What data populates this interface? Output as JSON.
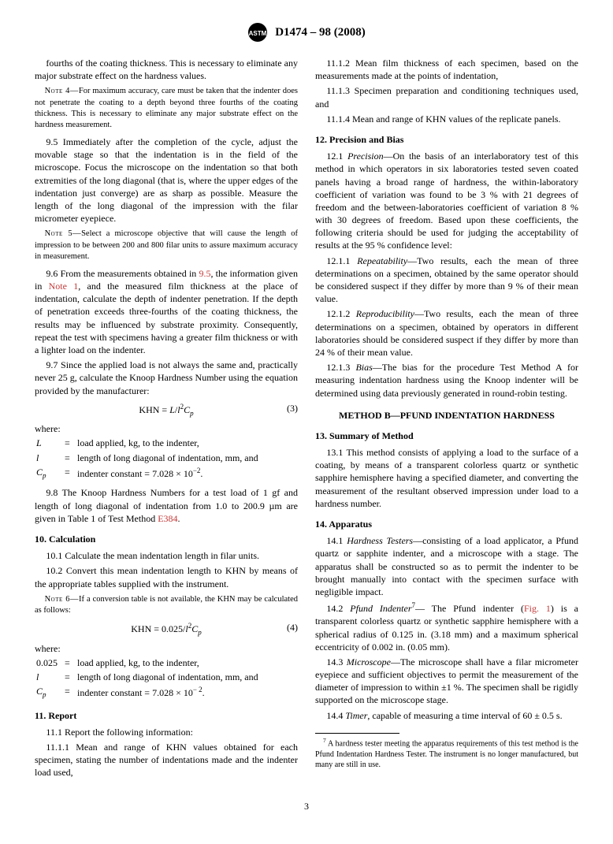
{
  "header": {
    "designation": "D1474 – 98 (2008)"
  },
  "columns_html": "<p class=\"para\" data-name=\"paragraph\" data-interactable=\"false\">fourths of the coating thickness. This is necessary to eliminate any major substrate effect on the hardness values.</p><p class=\"note\" data-name=\"note-4\" data-interactable=\"false\"><span class=\"note-label\">Note 4—</span>For maximum accuracy, care must be taken that the indenter does not penetrate the coating to a depth beyond three fourths of the coating thickness. This is necessary to eliminate any major substrate effect on the hardness measurement.</p><p class=\"para\" data-name=\"para-9-5\" data-interactable=\"false\">9.5 Immediately after the completion of the cycle, adjust the movable stage so that the indentation is in the field of the microscope. Focus the microscope on the indentation so that both extremities of the long diagonal (that is, where the upper edges of the indentation just converge) are as sharp as possible. Measure the length of the long diagonal of the impression with the filar micrometer eyepiece.</p><p class=\"note\" data-name=\"note-5\" data-interactable=\"false\"><span class=\"note-label\">Note 5—</span>Select a microscope objective that will cause the length of impression to be between 200 and 800 filar units to assure maximum accuracy in measurement.</p><p class=\"para\" data-name=\"para-9-6\" data-interactable=\"false\">9.6 From the measurements obtained in <span class=\"link-ref\" data-name=\"cross-ref\" data-interactable=\"false\">9.5</span>, the information given in <span class=\"link-ref\" data-name=\"cross-ref\" data-interactable=\"false\">Note 1</span>, and the measured film thickness at the place of indentation, calculate the depth of indenter penetration. If the depth of penetration exceeds three-fourths of the coating thickness, the results may be influenced by substrate proximity. Consequently, repeat the test with specimens having a greater film thickness or with a lighter load on the indenter.</p><p class=\"para\" data-name=\"para-9-7\" data-interactable=\"false\">9.7 Since the applied load is not always the same and, practically never 25 g, calculate the Knoop Hardness Number using the equation provided by the manufacturer:</p><div class=\"equation\" data-name=\"equation-3\" data-interactable=\"false\">KHN = <span class=\"italic\">L</span>/<span class=\"italic\">l</span><span class=\"sup\">2</span><span class=\"italic\">C<span class=\"sub\">p</span></span><span class=\"eq-num\">(3)</span></div><div class=\"where\" data-name=\"where-block\" data-interactable=\"false\">where:<table class=\"where-table\"><tr><td class=\"sym\">L</td><td class=\"eq\">=</td><td>load applied, kg, to the indenter,</td></tr><tr><td class=\"sym\">l</td><td class=\"eq\">=</td><td>length of long diagonal of indentation, mm, and</td></tr><tr><td class=\"sym\">C<span class=\"sub\">p</span></td><td class=\"eq\">=</td><td>indenter constant = 7.028 × 10<span class=\"sup\">−2</span>.</td></tr></table></div><p class=\"para\" data-name=\"para-9-8\" data-interactable=\"false\">9.8 The Knoop Hardness Numbers for a test load of 1 gf and length of long diagonal of indentation from 1.0 to 200.9 µm are given in Table 1 of Test Method <span class=\"link-ref\" data-name=\"cross-ref\" data-interactable=\"false\">E384</span>.</p><p class=\"section-head\" data-name=\"section-10-head\" data-interactable=\"false\">10.  Calculation</p><p class=\"para\" data-name=\"para-10-1\" data-interactable=\"false\">10.1 Calculate the mean indentation length in filar units.</p><p class=\"para\" data-name=\"para-10-2\" data-interactable=\"false\">10.2 Convert this mean indentation length to KHN by means of the appropriate tables supplied with the instrument.</p><p class=\"note\" data-name=\"note-6\" data-interactable=\"false\"><span class=\"note-label\">Note 6—</span>If a conversion table is not available, the KHN may be calculated as follows:</p><div class=\"equation\" data-name=\"equation-4\" data-interactable=\"false\">KHN = 0.025/<span class=\"italic\">l</span><span class=\"sup\">2</span><span class=\"italic\">C<span class=\"sub\">p</span></span><span class=\"eq-num\">(4)</span></div><div class=\"where\" data-name=\"where-block-2\" data-interactable=\"false\">where:<table class=\"where-table\"><tr><td class=\"sym\" style=\"font-style:normal;\">0.025</td><td class=\"eq\">=</td><td>load applied, kg, to the indenter,</td></tr><tr><td class=\"sym\">l</td><td class=\"eq\">=</td><td>length of long diagonal of indentation, mm, and</td></tr><tr><td class=\"sym\">C<span class=\"sub\">p</span></td><td class=\"eq\">=</td><td>indenter constant = 7.028 × 10<span class=\"sup\">− 2</span>.</td></tr></table></div><p class=\"section-head\" data-name=\"section-11-head\" data-interactable=\"false\">11.  Report</p><p class=\"para\" data-name=\"para-11-1\" data-interactable=\"false\">11.1 Report the following information:</p><p class=\"para\" data-name=\"para-11-1-1\" data-interactable=\"false\">11.1.1 Mean and range of KHN values obtained for each specimen, stating the number of indentations made and the indenter load used,</p><p class=\"para\" data-name=\"para-11-1-2\" data-interactable=\"false\">11.1.2 Mean film thickness of each specimen, based on the measurements made at the points of indentation,</p><p class=\"para\" data-name=\"para-11-1-3\" data-interactable=\"false\">11.1.3 Specimen preparation and conditioning techniques used, and</p><p class=\"para\" data-name=\"para-11-1-4\" data-interactable=\"false\">11.1.4 Mean and range of KHN values of the replicate panels.</p><p class=\"section-head\" data-name=\"section-12-head\" data-interactable=\"false\">12.  Precision and Bias</p><p class=\"para\" data-name=\"para-12-1\" data-interactable=\"false\">12.1 <span class=\"italic\">Precision</span>—On the basis of an interlaboratory test of this method in which operators in six laboratories tested seven coated panels having a broad range of hardness, the within-laboratory coefficient of variation was found to be 3 % with 21 degrees of freedom and the between-laboratories coefficient of variation 8 % with 30 degrees of freedom. Based upon these coefficients, the following criteria should be used for judging the acceptability of results at the 95 % confidence level:</p><p class=\"para\" data-name=\"para-12-1-1\" data-interactable=\"false\">12.1.1 <span class=\"italic\">Repeatability</span>—Two results, each the mean of three determinations on a specimen, obtained by the same operator should be considered suspect if they differ by more than 9 % of their mean value.</p><p class=\"para\" data-name=\"para-12-1-2\" data-interactable=\"false\">12.1.2 <span class=\"italic\">Reproducibility</span>—Two results, each the mean of three determinations on a specimen, obtained by operators in different laboratories should be considered suspect if they differ by more than 24 % of their mean value.</p><p class=\"para\" data-name=\"para-12-1-3\" data-interactable=\"false\">12.1.3 <span class=\"italic\">Bias</span>—The bias for the procedure Test Method A for measuring indentation hardness using the Knoop indenter will be determined using data previously generated in round-robin testing.</p><p class=\"method-head\" data-name=\"method-b-head\" data-interactable=\"false\">METHOD B—PFUND INDENTATION HARDNESS</p><p class=\"section-head\" data-name=\"section-13-head\" data-interactable=\"false\">13.  Summary of Method</p><p class=\"para\" data-name=\"para-13-1\" data-interactable=\"false\">13.1 This method consists of applying a load to the surface of a coating, by means of a transparent colorless quartz or synthetic sapphire hemisphere having a specified diameter, and converting the measurement of the resultant observed impression under load to a hardness number.</p><p class=\"section-head\" data-name=\"section-14-head\" data-interactable=\"false\">14.  Apparatus</p><p class=\"para\" data-name=\"para-14-1\" data-interactable=\"false\">14.1 <span class=\"italic\">Hardness Testers</span>—consisting of a load applicator, a Pfund quartz or sapphite indenter, and a microscope with a stage. The apparatus shall be constructed so as to permit the indenter to be brought manually into contact with the specimen surface with negligible impact.</p><p class=\"para\" data-name=\"para-14-2\" data-interactable=\"false\">14.2 <span class=\"italic\">Pfund Indenter</span><span class=\"sup\">7</span>— The Pfund indenter (<span class=\"link-ref\" data-name=\"cross-ref\" data-interactable=\"false\">Fig. 1</span>) is a transparent colorless quartz or synthetic sapphire hemisphere with a spherical radius of 0.125 in. (3.18 mm) and a maximum spherical eccentricity of 0.002 in. (0.05 mm).</p><p class=\"para\" data-name=\"para-14-3\" data-interactable=\"false\">14.3 <span class=\"italic\">Microscope</span>—The microscope shall have a filar micrometer eyepiece and sufficient objectives to permit the measurement of the diameter of impression to within ±1 %. The specimen shall be rigidly supported on the microscope stage.</p><p class=\"para\" data-name=\"para-14-4\" data-interactable=\"false\">14.4 <span class=\"italic\">Timer</span>, capable of measuring a time interval of 60 ± 0.5 s.</p><hr class=\"footnote-sep\" data-name=\"footnote-separator\" data-interactable=\"false\"><p class=\"footnote\" data-name=\"footnote-7\" data-interactable=\"false\"><span class=\"sup\">7</span> A hardness tester meeting the apparatus requirements of this test method is the Pfund Indentation Hardness Tester. The instrument is no longer manufactured, but many are still in use.</p>",
  "page_number": "3"
}
